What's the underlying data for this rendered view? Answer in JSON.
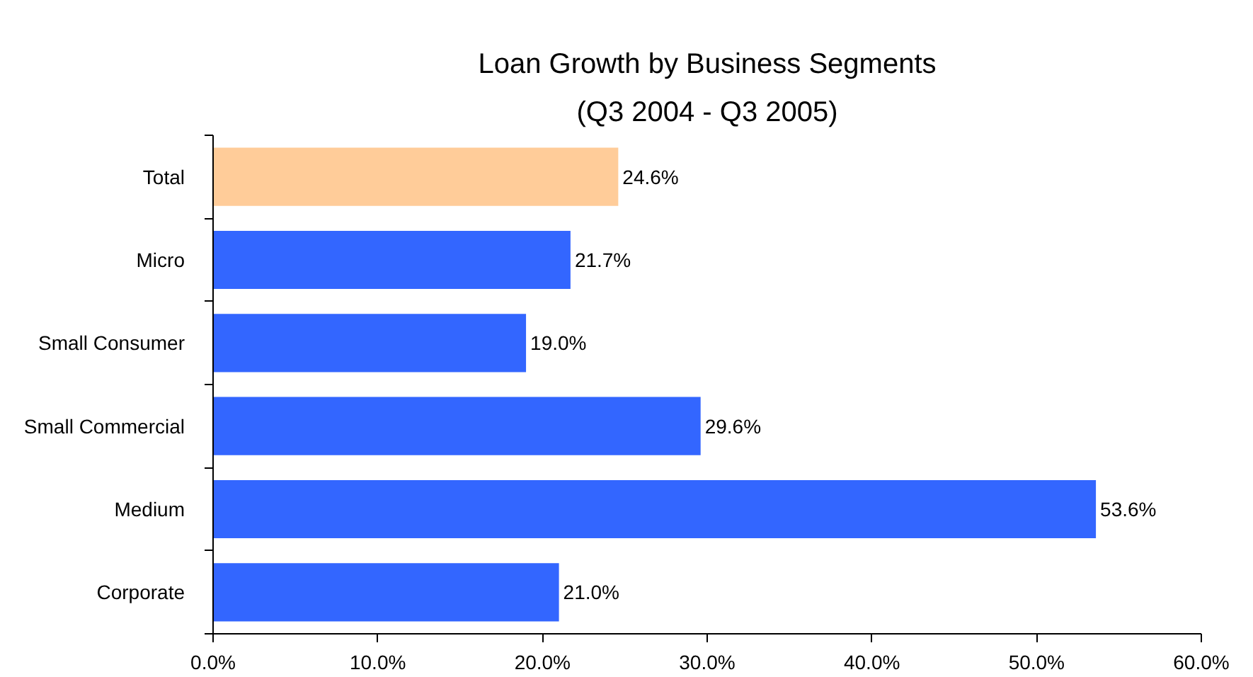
{
  "chart_data": {
    "type": "bar",
    "orientation": "horizontal",
    "title": "Loan Growth by Business Segments",
    "subtitle": "(Q3 2004 - Q3 2005)",
    "categories": [
      "Total",
      "Micro",
      "Small Consumer",
      "Small Commercial",
      "Medium",
      "Corporate"
    ],
    "values": [
      24.6,
      21.7,
      19.0,
      29.6,
      53.6,
      21.0
    ],
    "colors": [
      "#ffcc99",
      "#3366ff",
      "#3366ff",
      "#3366ff",
      "#3366ff",
      "#3366ff"
    ],
    "value_labels": [
      "24.6%",
      "21.7%",
      "19.0%",
      "29.6%",
      "53.6%",
      "21.0%"
    ],
    "xlim": [
      0,
      60
    ],
    "xticks": [
      {
        "value": 0,
        "label": "0.0%"
      },
      {
        "value": 10,
        "label": "10.0%"
      },
      {
        "value": 20,
        "label": "20.0%"
      },
      {
        "value": 30,
        "label": "30.0%"
      },
      {
        "value": 40,
        "label": "40.0%"
      },
      {
        "value": 50,
        "label": "50.0%"
      },
      {
        "value": 60,
        "label": "60.0%"
      }
    ],
    "grid": false
  }
}
